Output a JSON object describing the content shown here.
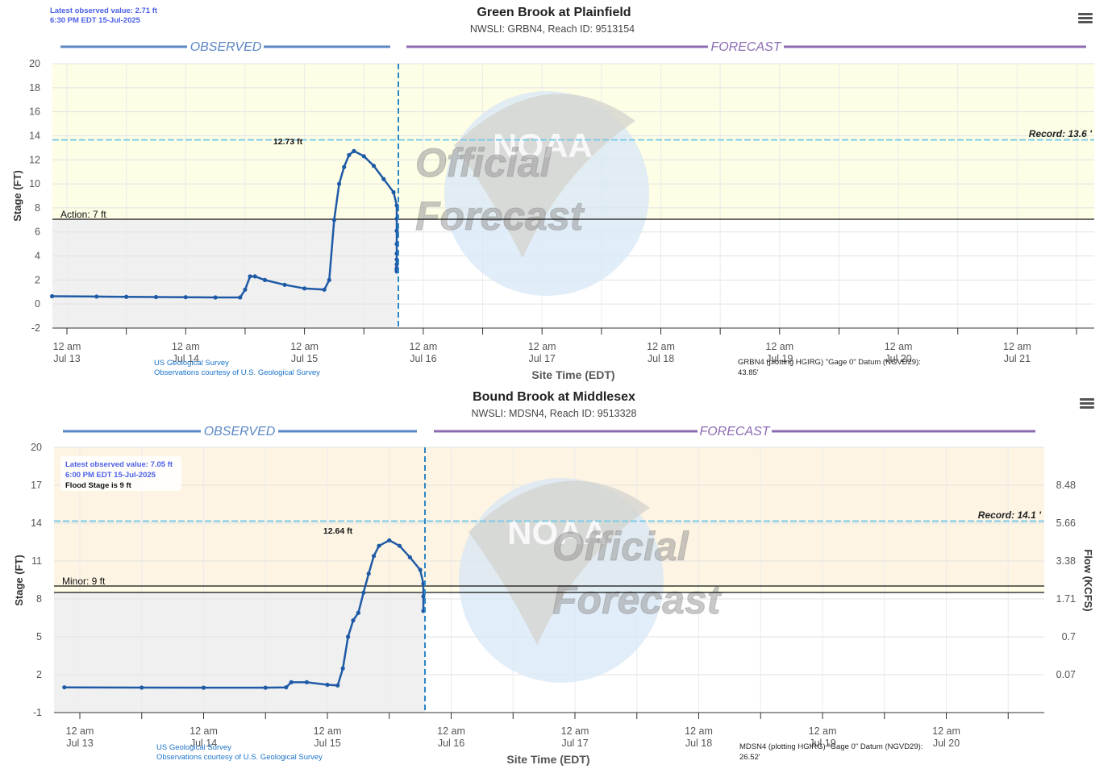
{
  "charts": [
    {
      "id": "grbn4",
      "title": "Green Brook at Plainfield",
      "subtitle": "NWSLI: GRBN4, Reach ID: 9513154",
      "latest_observed": {
        "line1": "Latest observed value: 2.71 ft",
        "line2": "6:30 PM EDT 15-Jul-2025",
        "line3": ""
      },
      "observed_label": "OBSERVED",
      "forecast_label": "FORECAST",
      "y_axis_label": "Stage (FT)",
      "x_axis_label": "Site Time (EDT)",
      "y_ticks": [
        "20",
        "18",
        "16",
        "14",
        "12",
        "10",
        "8",
        "6",
        "4",
        "2",
        "0",
        "-2"
      ],
      "x_ticks": [
        {
          "l1": "12 am",
          "l2": "Jul 13"
        },
        {
          "l1": "12 am",
          "l2": "Jul 14"
        },
        {
          "l1": "12 am",
          "l2": "Jul 15"
        },
        {
          "l1": "12 am",
          "l2": "Jul 16"
        },
        {
          "l1": "12 am",
          "l2": "Jul 17"
        },
        {
          "l1": "12 am",
          "l2": "Jul 18"
        },
        {
          "l1": "12 am",
          "l2": "Jul 19"
        },
        {
          "l1": "12 am",
          "l2": "Jul 20"
        },
        {
          "l1": "12 am",
          "l2": "Jul 21"
        }
      ],
      "threshold_label": "Action: 7 ft",
      "record_label": "Record: 13.6 '",
      "peak_label": "12.73 ft",
      "credit_line1": "US Geological Survey",
      "credit_line2": "Observations courtesy of U.S. Geological Survey",
      "datum_line1": "GRBN4 (plotting HGIRG) \"Gage 0\" Datum (NGVD29):",
      "datum_line2": "43.85'",
      "watermark": {
        "official": "Official",
        "forecast": "Forecast",
        "noaa": "NOAA"
      },
      "colors": {
        "upper_band": "#fefde6",
        "lower_band": "#f0f0f0",
        "line": "#1f5aa6",
        "record": "#7dcbe8",
        "observed": "#5b87c5",
        "forecast": "#8c6bb1",
        "now_line": "#2a87c8"
      }
    },
    {
      "id": "mdsn4",
      "title": "Bound Brook at Middlesex",
      "subtitle": "NWSLI: MDSN4, Reach ID: 9513328",
      "latest_observed": {
        "line1": "Latest observed value: 7.05 ft",
        "line2": "6:00 PM EDT 15-Jul-2025",
        "line3": "Flood Stage is 9 ft"
      },
      "observed_label": "OBSERVED",
      "forecast_label": "FORECAST",
      "y_axis_label": "Stage (FT)",
      "y2_axis_label": "Flow (KCFS)",
      "x_axis_label": "Site Time (EDT)",
      "y_ticks": [
        "20",
        "17",
        "14",
        "11",
        "8",
        "5",
        "2",
        "-1"
      ],
      "y2_ticks": [
        "8.48",
        "5.66",
        "3.38",
        "1.71",
        "0.7",
        "0.07"
      ],
      "x_ticks": [
        {
          "l1": "12 am",
          "l2": "Jul 13"
        },
        {
          "l1": "12 am",
          "l2": "Jul 14"
        },
        {
          "l1": "12 am",
          "l2": "Jul 15"
        },
        {
          "l1": "12 am",
          "l2": "Jul 16"
        },
        {
          "l1": "12 am",
          "l2": "Jul 17"
        },
        {
          "l1": "12 am",
          "l2": "Jul 18"
        },
        {
          "l1": "12 am",
          "l2": "Jul 19"
        },
        {
          "l1": "12 am",
          "l2": "Jul 20"
        }
      ],
      "threshold_label": "Minor: 9 ft",
      "record_label": "Record: 14.1 '",
      "peak_label": "12.64 ft",
      "credit_line1": "US Geological Survey",
      "credit_line2": "Observations courtesy of U.S. Geological Survey",
      "datum_line1": "MDSN4 (plotting HGIRG) \"Gage 0\" Datum (NGVD29):",
      "datum_line2": "26.52'",
      "watermark": {
        "official": "Official",
        "forecast": "Forecast",
        "noaa": "NOAA"
      },
      "colors": {
        "upper_band": "#fdf4e3",
        "minor_band": "#fefde6",
        "lower_band": "#f0f0f0",
        "line": "#1f5aa6",
        "record": "#7dcbe8",
        "observed": "#5b87c5",
        "forecast": "#8c6bb1",
        "now_line": "#2a87c8"
      }
    }
  ],
  "chart_data": [
    {
      "type": "line",
      "title": "Green Brook at Plainfield",
      "subtitle": "NWSLI: GRBN4, Reach ID: 9513154",
      "xlabel": "Site Time (EDT)",
      "ylabel": "Stage (FT)",
      "ylim": [
        -2,
        20
      ],
      "x_range": [
        "2025-07-13 00:00 (approx -3h)",
        "2025-07-21 ~14:00"
      ],
      "grid": true,
      "thresholds": {
        "action_ft": 7,
        "record_ft": 13.6
      },
      "peak": {
        "value_ft": 12.73,
        "time": "2025-07-14 ~21:00"
      },
      "latest": {
        "value_ft": 2.71,
        "time": "2025-07-15 18:30 EDT"
      },
      "series": [
        {
          "name": "Observed Stage",
          "x_hours_from_jul13": [
            -3,
            6,
            12,
            18,
            24,
            30,
            35,
            36,
            37,
            38,
            40,
            44,
            48,
            52,
            53,
            54,
            55,
            56,
            57,
            58,
            60,
            62,
            64,
            66,
            68,
            70,
            72,
            75,
            78,
            81,
            84,
            87,
            90,
            92.5
          ],
          "values": [
            0.65,
            0.62,
            0.6,
            0.58,
            0.57,
            0.55,
            0.55,
            1.2,
            2.3,
            2.3,
            2.0,
            1.6,
            1.3,
            1.2,
            2.0,
            7.0,
            10.0,
            11.4,
            12.4,
            12.73,
            12.3,
            11.5,
            10.4,
            9.3,
            8.2,
            7.1,
            6.1,
            5.0,
            4.2,
            3.7,
            3.3,
            3.0,
            2.85,
            2.71
          ]
        }
      ]
    },
    {
      "type": "line",
      "title": "Bound Brook at Middlesex",
      "subtitle": "NWSLI: MDSN4, Reach ID: 9513328",
      "xlabel": "Site Time (EDT)",
      "ylabel": "Stage (FT)",
      "y2label": "Flow (KCFS)",
      "ylim": [
        -1,
        20
      ],
      "y2_ticks_at_stage": {
        "17": 8.48,
        "14": 5.66,
        "11": 3.38,
        "8": 1.71,
        "5": 0.7,
        "2": 0.07
      },
      "x_range": [
        "2025-07-13 00:00 (approx -3h)",
        "2025-07-20 ~17:00"
      ],
      "grid": true,
      "thresholds": {
        "minor_ft": 9,
        "action_ft": 8.5,
        "record_ft": 14.1,
        "flood_stage_ft": 9
      },
      "peak": {
        "value_ft": 12.64,
        "time": "2025-07-15 ~01:00"
      },
      "latest": {
        "value_ft": 7.05,
        "time": "2025-07-15 18:00 EDT"
      },
      "series": [
        {
          "name": "Observed Stage",
          "x_hours_from_jul13": [
            -3,
            12,
            24,
            36,
            40,
            41,
            44,
            48,
            50,
            51,
            52,
            53,
            54,
            55,
            56,
            57,
            58,
            60,
            62,
            64,
            66,
            68,
            70,
            72
          ],
          "values": [
            1.0,
            0.98,
            0.97,
            0.97,
            1.0,
            1.4,
            1.4,
            1.2,
            1.15,
            2.5,
            5.0,
            6.3,
            6.9,
            8.5,
            10.0,
            11.4,
            12.2,
            12.64,
            12.2,
            11.3,
            10.3,
            9.2,
            8.2,
            7.05
          ]
        }
      ]
    }
  ]
}
